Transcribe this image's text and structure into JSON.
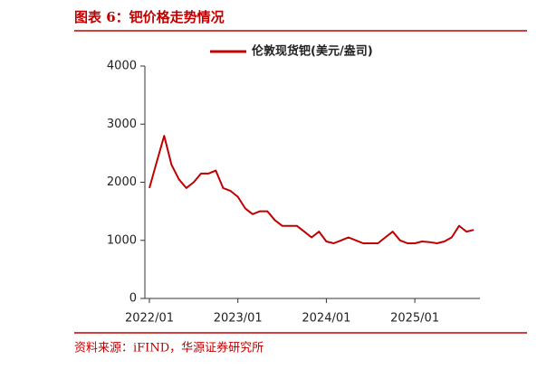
{
  "chart_data": {
    "type": "line",
    "title": "图表 6：钯价格走势情况",
    "source": "资料来源：iFIND，华源证券研究所",
    "x": [
      "2022/01",
      "2022/02",
      "2022/03",
      "2022/04",
      "2022/05",
      "2022/06",
      "2022/07",
      "2022/08",
      "2022/09",
      "2022/10",
      "2022/11",
      "2022/12",
      "2023/01",
      "2023/02",
      "2023/03",
      "2023/04",
      "2023/05",
      "2023/06",
      "2023/07",
      "2023/08",
      "2023/09",
      "2023/10",
      "2023/11",
      "2023/12",
      "2024/01",
      "2024/02",
      "2024/03",
      "2024/04",
      "2024/05",
      "2024/06",
      "2024/07",
      "2024/08",
      "2024/09",
      "2024/10",
      "2024/11",
      "2024/12",
      "2025/01",
      "2025/02",
      "2025/03",
      "2025/04",
      "2025/05",
      "2025/06",
      "2025/07",
      "2025/08",
      "2025/09"
    ],
    "series": [
      {
        "name": "伦敦现货钯(美元/盎司)",
        "color": "#c00000",
        "values": [
          1900,
          2350,
          2800,
          2300,
          2050,
          1900,
          2000,
          2150,
          2150,
          2200,
          1900,
          1850,
          1750,
          1550,
          1450,
          1500,
          1500,
          1350,
          1250,
          1250,
          1250,
          1150,
          1050,
          1150,
          980,
          950,
          1000,
          1050,
          1000,
          950,
          950,
          950,
          1050,
          1150,
          1000,
          950,
          950,
          980,
          970,
          950,
          980,
          1050,
          1250,
          1150,
          1180
        ]
      }
    ],
    "ylim": [
      0,
      4000
    ],
    "yticks": [
      0,
      1000,
      2000,
      3000,
      4000
    ],
    "xticks": [
      "2022/01",
      "2023/01",
      "2024/01",
      "2025/01"
    ],
    "legend": "top"
  }
}
